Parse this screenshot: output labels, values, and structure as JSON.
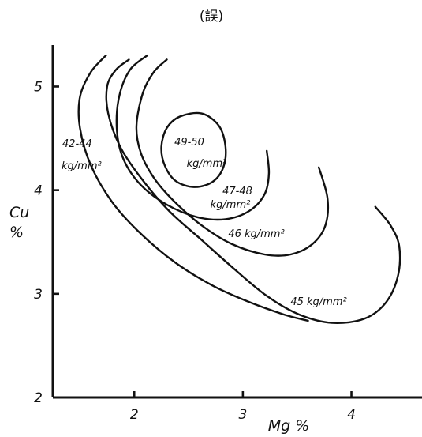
{
  "chart_data": {
    "type": "contour",
    "title": "(誤)",
    "xlabel": "Mg %",
    "ylabel_line1": "Cu",
    "ylabel_line2": "%",
    "xlim": [
      1.25,
      4.65
    ],
    "ylim": [
      2,
      5.4
    ],
    "x_ticks": [
      "2",
      "3",
      "4"
    ],
    "y_ticks": [
      "2",
      "3",
      "4",
      "5"
    ],
    "grid": false,
    "contours": [
      {
        "label_lines": [
          "49-50",
          "kg/mm²"
        ],
        "closed": true,
        "points": [
          [
            2.62,
            4.74
          ],
          [
            2.78,
            4.62
          ],
          [
            2.84,
            4.42
          ],
          [
            2.82,
            4.22
          ],
          [
            2.72,
            4.08
          ],
          [
            2.55,
            4.03
          ],
          [
            2.38,
            4.09
          ],
          [
            2.28,
            4.24
          ],
          [
            2.25,
            4.42
          ],
          [
            2.3,
            4.6
          ],
          [
            2.42,
            4.71
          ],
          [
            2.62,
            4.74
          ]
        ]
      },
      {
        "label_lines": [
          "47-48",
          "kg/mm²"
        ],
        "closed": false,
        "points": [
          [
            2.12,
            5.3
          ],
          [
            1.96,
            5.16
          ],
          [
            1.86,
            4.9
          ],
          [
            1.84,
            4.58
          ],
          [
            1.9,
            4.3
          ],
          [
            2.06,
            4.05
          ],
          [
            2.3,
            3.86
          ],
          [
            2.58,
            3.74
          ],
          [
            2.84,
            3.72
          ],
          [
            3.06,
            3.8
          ],
          [
            3.2,
            3.96
          ],
          [
            3.24,
            4.16
          ],
          [
            3.22,
            4.38
          ]
        ]
      },
      {
        "label_lines": [
          "46 kg/mm²"
        ],
        "closed": false,
        "points": [
          [
            2.3,
            5.26
          ],
          [
            2.18,
            5.14
          ],
          [
            2.08,
            4.94
          ],
          [
            2.02,
            4.62
          ],
          [
            2.06,
            4.36
          ],
          [
            2.18,
            4.12
          ],
          [
            2.36,
            3.9
          ],
          [
            2.62,
            3.66
          ],
          [
            2.9,
            3.48
          ],
          [
            3.2,
            3.38
          ],
          [
            3.44,
            3.38
          ],
          [
            3.64,
            3.48
          ],
          [
            3.76,
            3.66
          ],
          [
            3.78,
            3.92
          ],
          [
            3.7,
            4.22
          ]
        ]
      },
      {
        "label_lines": [
          "45  kg/mm²"
        ],
        "closed": false,
        "points": [
          [
            1.95,
            5.26
          ],
          [
            1.83,
            5.16
          ],
          [
            1.75,
            5.0
          ],
          [
            1.76,
            4.74
          ],
          [
            1.87,
            4.42
          ],
          [
            2.06,
            4.12
          ],
          [
            2.32,
            3.8
          ],
          [
            2.62,
            3.52
          ],
          [
            2.92,
            3.24
          ],
          [
            3.22,
            2.98
          ],
          [
            3.52,
            2.8
          ],
          [
            3.82,
            2.72
          ],
          [
            4.12,
            2.76
          ],
          [
            4.32,
            2.92
          ],
          [
            4.43,
            3.18
          ],
          [
            4.44,
            3.46
          ],
          [
            4.36,
            3.66
          ],
          [
            4.22,
            3.84
          ]
        ]
      },
      {
        "label_lines": [
          "42-44",
          "kg/mm²"
        ],
        "closed": false,
        "points": [
          [
            1.74,
            5.3
          ],
          [
            1.6,
            5.14
          ],
          [
            1.5,
            4.9
          ],
          [
            1.5,
            4.6
          ],
          [
            1.6,
            4.24
          ],
          [
            1.8,
            3.88
          ],
          [
            2.06,
            3.58
          ],
          [
            2.38,
            3.3
          ],
          [
            2.72,
            3.08
          ],
          [
            3.06,
            2.92
          ],
          [
            3.38,
            2.8
          ],
          [
            3.6,
            2.74
          ]
        ]
      }
    ]
  }
}
